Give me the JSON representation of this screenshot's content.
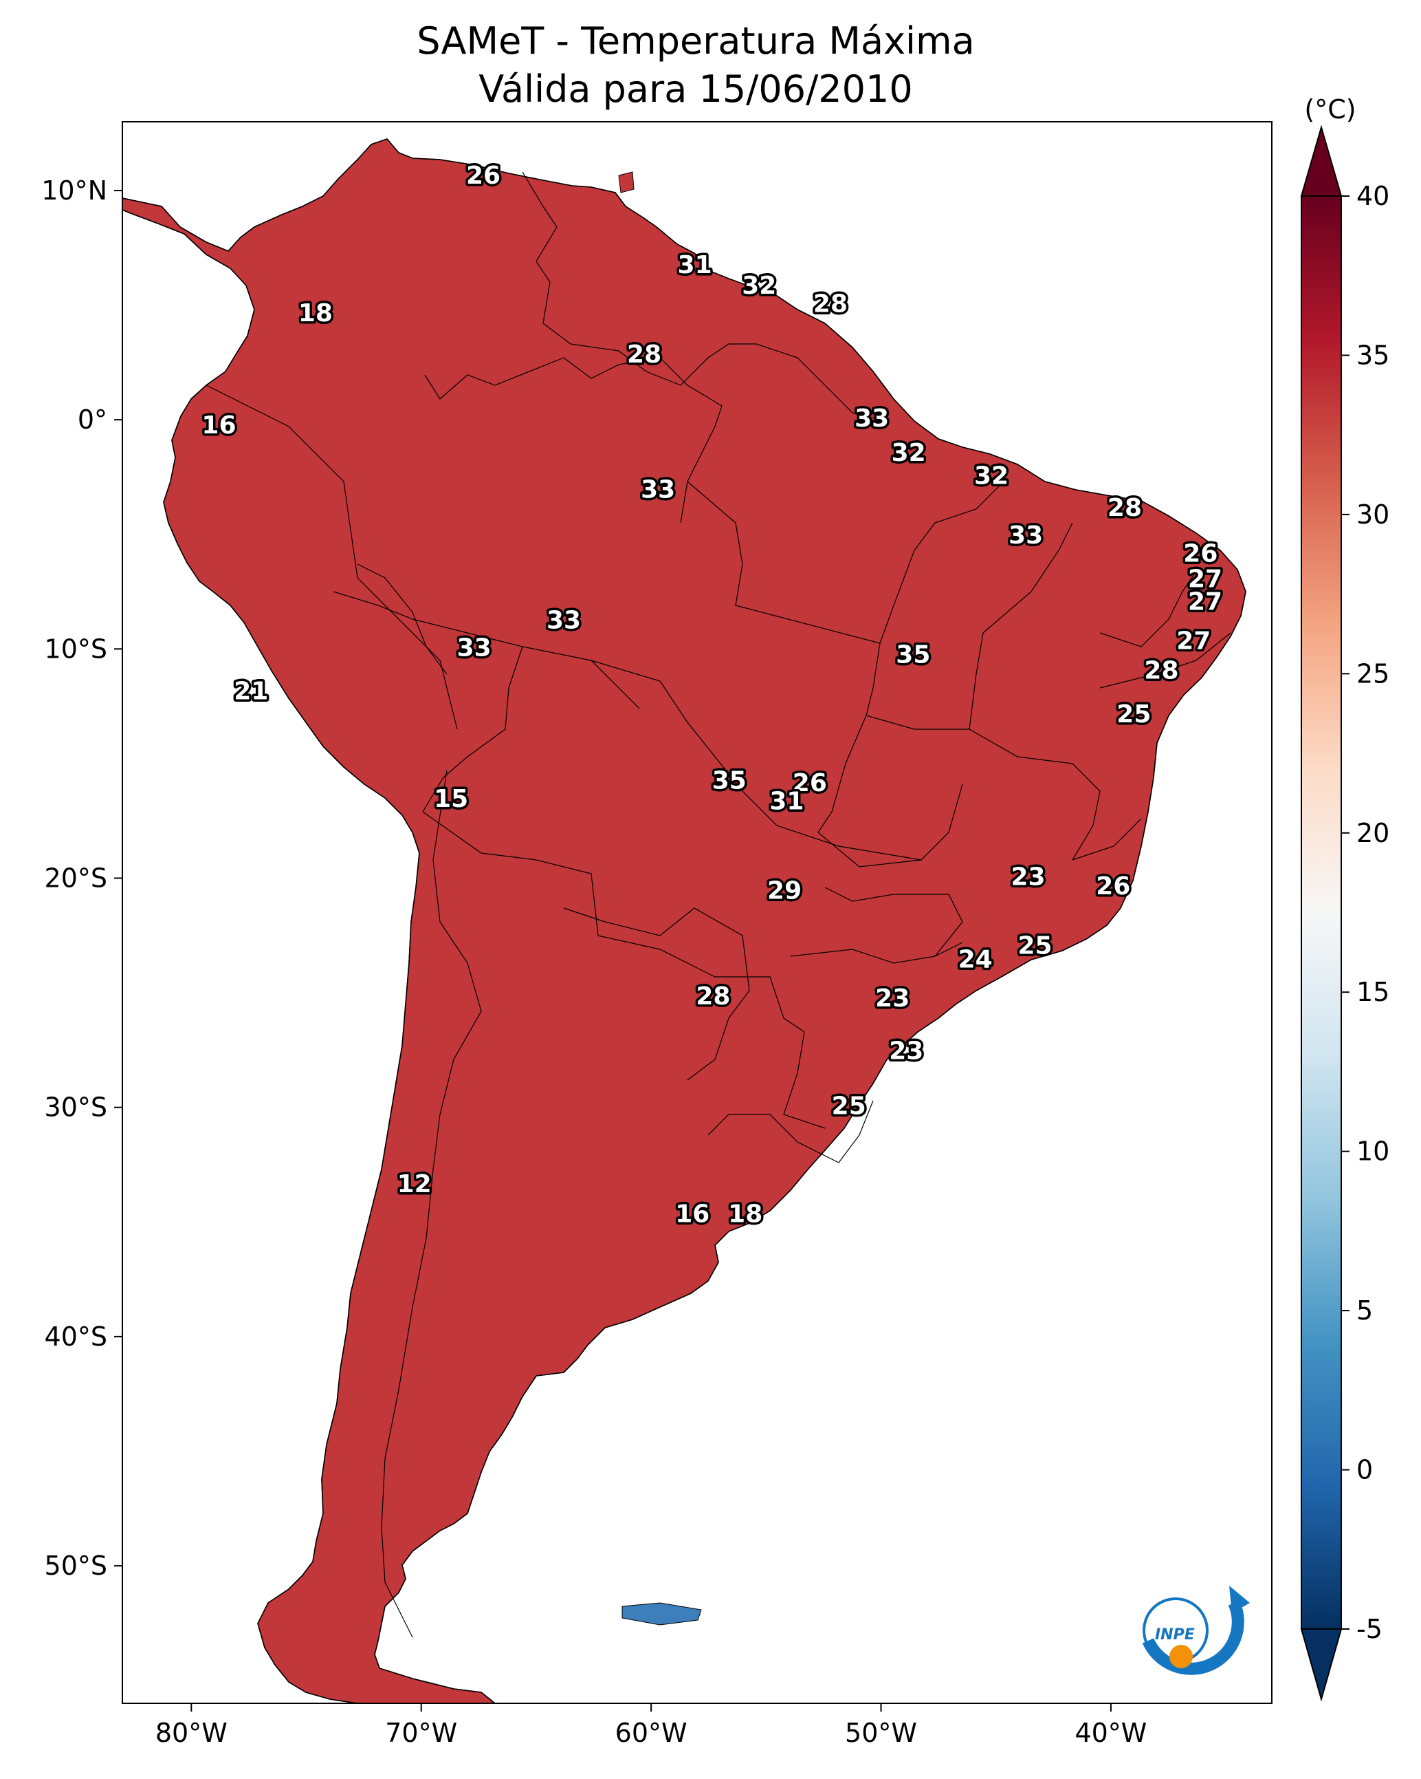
{
  "title": {
    "line1": "SAMeT - Temperatura Máxima",
    "line2": "Válida para 15/06/2010"
  },
  "map": {
    "lon_range": [
      -83,
      -33
    ],
    "lat_range": [
      -56,
      13
    ],
    "x_ticks": [
      {
        "value": -80,
        "label": "80°W"
      },
      {
        "value": -70,
        "label": "70°W"
      },
      {
        "value": -60,
        "label": "60°W"
      },
      {
        "value": -50,
        "label": "50°W"
      },
      {
        "value": -40,
        "label": "40°W"
      }
    ],
    "y_ticks": [
      {
        "value": 10,
        "label": "10°N"
      },
      {
        "value": 0,
        "label": "0°"
      },
      {
        "value": -10,
        "label": "10°S"
      },
      {
        "value": -20,
        "label": "20°S"
      },
      {
        "value": -30,
        "label": "30°S"
      },
      {
        "value": -40,
        "label": "40°S"
      },
      {
        "value": -50,
        "label": "50°S"
      }
    ],
    "contour_labels": [
      {
        "lon": -67.3,
        "lat": 10.6,
        "label": "26"
      },
      {
        "lon": -58.1,
        "lat": 6.7,
        "label": "31"
      },
      {
        "lon": -55.3,
        "lat": 5.8,
        "label": "32"
      },
      {
        "lon": -52.2,
        "lat": 5.0,
        "label": "28"
      },
      {
        "lon": -74.6,
        "lat": 4.6,
        "label": "18"
      },
      {
        "lon": -60.3,
        "lat": 2.8,
        "label": "28"
      },
      {
        "lon": -50.4,
        "lat": 0.0,
        "label": "33"
      },
      {
        "lon": -78.8,
        "lat": -0.3,
        "label": "16"
      },
      {
        "lon": -48.8,
        "lat": -1.5,
        "label": "32"
      },
      {
        "lon": -45.2,
        "lat": -2.5,
        "label": "32"
      },
      {
        "lon": -59.7,
        "lat": -3.1,
        "label": "33"
      },
      {
        "lon": -39.4,
        "lat": -3.9,
        "label": "28"
      },
      {
        "lon": -43.7,
        "lat": -5.1,
        "label": "33"
      },
      {
        "lon": -36.1,
        "lat": -5.9,
        "label": "26"
      },
      {
        "lon": -35.9,
        "lat": -7.0,
        "label": "27"
      },
      {
        "lon": -35.9,
        "lat": -8.0,
        "label": "27"
      },
      {
        "lon": -36.4,
        "lat": -9.7,
        "label": "27"
      },
      {
        "lon": -63.8,
        "lat": -8.8,
        "label": "33"
      },
      {
        "lon": -67.7,
        "lat": -10.0,
        "label": "33"
      },
      {
        "lon": -48.6,
        "lat": -10.3,
        "label": "35"
      },
      {
        "lon": -37.8,
        "lat": -11.0,
        "label": "28"
      },
      {
        "lon": -77.4,
        "lat": -11.9,
        "label": "21"
      },
      {
        "lon": -39.0,
        "lat": -12.9,
        "label": "25"
      },
      {
        "lon": -53.1,
        "lat": -15.9,
        "label": "26"
      },
      {
        "lon": -56.6,
        "lat": -15.8,
        "label": "35"
      },
      {
        "lon": -54.1,
        "lat": -16.7,
        "label": "31"
      },
      {
        "lon": -68.7,
        "lat": -16.6,
        "label": "15"
      },
      {
        "lon": -43.6,
        "lat": -20.0,
        "label": "23"
      },
      {
        "lon": -54.2,
        "lat": -20.6,
        "label": "29"
      },
      {
        "lon": -39.9,
        "lat": -20.4,
        "label": "26"
      },
      {
        "lon": -43.3,
        "lat": -23.0,
        "label": "25"
      },
      {
        "lon": -45.9,
        "lat": -23.6,
        "label": "24"
      },
      {
        "lon": -57.3,
        "lat": -25.2,
        "label": "28"
      },
      {
        "lon": -49.5,
        "lat": -25.3,
        "label": "23"
      },
      {
        "lon": -48.9,
        "lat": -27.6,
        "label": "23"
      },
      {
        "lon": -51.4,
        "lat": -30.0,
        "label": "25"
      },
      {
        "lon": -70.3,
        "lat": -33.4,
        "label": "12"
      },
      {
        "lon": -58.2,
        "lat": -34.7,
        "label": "16"
      },
      {
        "lon": -55.9,
        "lat": -34.7,
        "label": "18"
      }
    ]
  },
  "colorbar": {
    "unit": "(°C)",
    "min": -5,
    "max": 40,
    "ticks": [
      {
        "value": 40,
        "label": "40"
      },
      {
        "value": 35,
        "label": "35"
      },
      {
        "value": 30,
        "label": "30"
      },
      {
        "value": 25,
        "label": "25"
      },
      {
        "value": 20,
        "label": "20"
      },
      {
        "value": 15,
        "label": "15"
      },
      {
        "value": 10,
        "label": "10"
      },
      {
        "value": 5,
        "label": "5"
      },
      {
        "value": 0,
        "label": "0"
      },
      {
        "value": -5,
        "label": "-5"
      }
    ],
    "colors": [
      "#053061",
      "#2166ac",
      "#4393c3",
      "#92c5de",
      "#d1e5f0",
      "#f7f7f7",
      "#fddbc7",
      "#f4a582",
      "#d6604d",
      "#b2182b",
      "#67001f"
    ]
  },
  "logo": {
    "text": "INPE"
  }
}
